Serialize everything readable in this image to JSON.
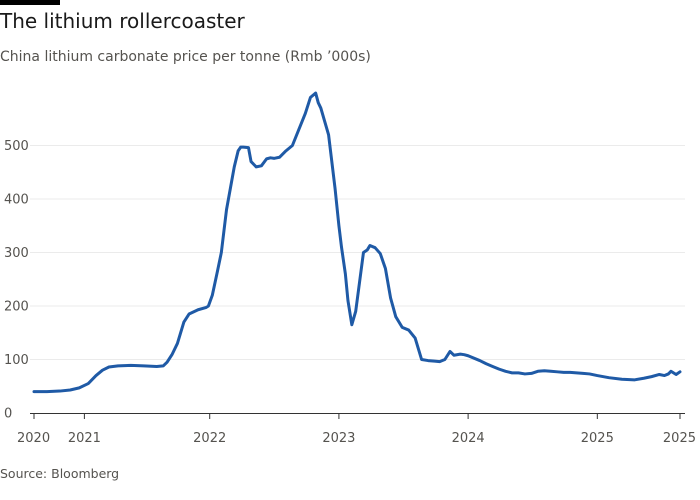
{
  "header": {
    "title": "The lithium rollercoaster",
    "subtitle": "China lithium carbonate price per tonne (Rmb ’000s)"
  },
  "footer": {
    "source": "Source: Bloomberg"
  },
  "colors": {
    "line": "#1f5aa6",
    "grid": "#ebebeb",
    "axis": "#333333",
    "text": "#55534f"
  },
  "chart_data": {
    "type": "line",
    "title": "The lithium rollercoaster",
    "subtitle": "China lithium carbonate price per tonne (Rmb ’000s)",
    "xlabel": "",
    "ylabel": "",
    "xlim": [
      2020.0,
      2025.0
    ],
    "ylim": [
      0,
      600
    ],
    "y_ticks": [
      0,
      100,
      200,
      300,
      400,
      500
    ],
    "x_ticks": [
      {
        "value": 2020.0,
        "label": "2020"
      },
      {
        "value": 2020.39,
        "label": "2021"
      },
      {
        "value": 2021.36,
        "label": "2022"
      },
      {
        "value": 2022.36,
        "label": "2023"
      },
      {
        "value": 2023.36,
        "label": "2024"
      },
      {
        "value": 2024.36,
        "label": "2025"
      },
      {
        "value": 2025.0,
        "label": "2025"
      }
    ],
    "grid": true,
    "series": [
      {
        "name": "Lithium carbonate price",
        "x": [
          2020.0,
          2020.1,
          2020.2,
          2020.28,
          2020.35,
          2020.42,
          2020.48,
          2020.53,
          2020.58,
          2020.65,
          2020.75,
          2020.85,
          2020.95,
          2021.0,
          2021.03,
          2021.07,
          2021.11,
          2021.16,
          2021.2,
          2021.27,
          2021.33,
          2021.35,
          2021.38,
          2021.42,
          2021.45,
          2021.47,
          2021.49,
          2021.52,
          2021.55,
          2021.58,
          2021.6,
          2021.62,
          2021.66,
          2021.68,
          2021.72,
          2021.76,
          2021.8,
          2021.83,
          2021.86,
          2021.9,
          2021.95,
          2022.0,
          2022.05,
          2022.1,
          2022.14,
          2022.18,
          2022.2,
          2022.22,
          2022.25,
          2022.28,
          2022.3,
          2022.33,
          2022.36,
          2022.38,
          2022.41,
          2022.43,
          2022.46,
          2022.49,
          2022.52,
          2022.55,
          2022.58,
          2022.6,
          2022.64,
          2022.68,
          2022.72,
          2022.76,
          2022.8,
          2022.85,
          2022.9,
          2022.95,
          2023.0,
          2023.05,
          2023.1,
          2023.14,
          2023.18,
          2023.22,
          2023.25,
          2023.3,
          2023.33,
          2023.36,
          2023.45,
          2023.5,
          2023.55,
          2023.6,
          2023.65,
          2023.7,
          2023.75,
          2023.8,
          2023.85,
          2023.9,
          2023.95,
          2024.0,
          2024.05,
          2024.1,
          2024.15,
          2024.2,
          2024.25,
          2024.3,
          2024.36,
          2024.45,
          2024.55,
          2024.65,
          2024.72,
          2024.78,
          2024.84,
          2024.88,
          2024.91,
          2024.93,
          2024.95,
          2024.97,
          2025.0
        ],
        "values": [
          40,
          40,
          41,
          43,
          47,
          55,
          70,
          80,
          86,
          88,
          89,
          88,
          87,
          88,
          95,
          110,
          130,
          170,
          185,
          193,
          197,
          200,
          220,
          265,
          300,
          340,
          380,
          420,
          460,
          490,
          497,
          497,
          496,
          470,
          460,
          462,
          475,
          477,
          476,
          478,
          490,
          500,
          530,
          560,
          590,
          598,
          580,
          570,
          545,
          520,
          480,
          420,
          350,
          310,
          260,
          210,
          165,
          190,
          245,
          300,
          305,
          313,
          309,
          298,
          270,
          215,
          180,
          160,
          155,
          140,
          100,
          98,
          97,
          96,
          100,
          115,
          108,
          110,
          109,
          107,
          98,
          92,
          87,
          82,
          78,
          75,
          75,
          73,
          74,
          78,
          79,
          78,
          77,
          76,
          76,
          75,
          74,
          73,
          70,
          66,
          63,
          62,
          65,
          68,
          72,
          70,
          73,
          78,
          75,
          72,
          77
        ]
      }
    ]
  }
}
